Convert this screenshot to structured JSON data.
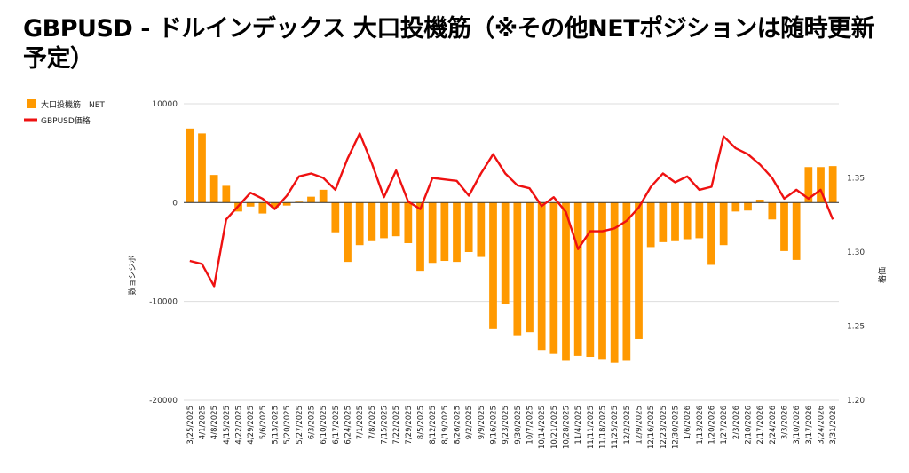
{
  "chart_data": {
    "type": "bar+line",
    "title": "GBPUSD - ドルインデックス 大口投機筋（※その他NETポジションは随時更新予定）",
    "ylabel_left": "数ョシジボ",
    "ylabel_right": "格価",
    "ylim_left": [
      -20000,
      10000
    ],
    "yticks_left": [
      "10000",
      "0",
      "-10000",
      "-20000"
    ],
    "ylim_right": [
      1.2,
      1.4
    ],
    "yticks_right": [
      "1.35",
      "1.30",
      "1.25",
      "1.20"
    ],
    "legend_position": "left",
    "categories": [
      "3/25/2025",
      "4/1/2025",
      "4/8/2025",
      "4/15/2025",
      "4/22/2025",
      "4/29/2025",
      "5/6/2025",
      "5/13/2025",
      "5/20/2025",
      "5/27/2025",
      "6/3/2025",
      "6/10/2025",
      "6/17/2025",
      "6/24/2025",
      "7/1/2025",
      "7/8/2025",
      "7/15/2025",
      "7/22/2025",
      "7/29/2025",
      "8/5/2025",
      "8/12/2025",
      "8/19/2025",
      "8/26/2025",
      "9/2/2025",
      "9/9/2025",
      "9/16/2025",
      "9/23/2025",
      "9/30/2025",
      "10/7/2025",
      "10/14/2025",
      "10/21/2025",
      "10/28/2025",
      "11/4/2025",
      "11/11/2025",
      "11/18/2025",
      "11/25/2025",
      "12/2/2025",
      "12/9/2025",
      "12/16/2025",
      "12/23/2025",
      "12/30/2025",
      "1/6/2026",
      "1/13/2026",
      "1/20/2026",
      "1/27/2026",
      "2/3/2026",
      "2/10/2026",
      "2/17/2026",
      "2/24/2026",
      "3/3/2026",
      "3/10/2026",
      "3/17/2026",
      "3/24/2026",
      "3/31/2026"
    ],
    "series": [
      {
        "name": "大口投機筋　NET",
        "type": "bar",
        "axis": "left",
        "color": "#ff9900",
        "values": [
          7500,
          7000,
          2800,
          1700,
          -900,
          -400,
          -1100,
          -500,
          -300,
          100,
          600,
          1300,
          -3000,
          -6000,
          -4300,
          -3900,
          -3600,
          -3400,
          -4100,
          -6900,
          -6100,
          -5900,
          -6000,
          -5000,
          -5500,
          -12800,
          -10300,
          -13500,
          -13100,
          -14900,
          -15300,
          -16000,
          -15500,
          -15600,
          -15900,
          -16200,
          -16000,
          -13800,
          -4500,
          -4000,
          -3900,
          -3700,
          -3600,
          -6300,
          -4300,
          -900,
          -800,
          300,
          -1700,
          -4900,
          -5800,
          3600,
          3600,
          3700
        ]
      },
      {
        "name": "GBPUSD価格",
        "type": "line",
        "axis": "right",
        "color": "#ee1111",
        "values": [
          1.294,
          1.292,
          1.277,
          1.322,
          1.331,
          1.34,
          1.336,
          1.329,
          1.338,
          1.351,
          1.353,
          1.35,
          1.342,
          1.363,
          1.38,
          1.36,
          1.337,
          1.355,
          1.334,
          1.329,
          1.35,
          1.349,
          1.348,
          1.338,
          1.353,
          1.366,
          1.353,
          1.345,
          1.343,
          1.331,
          1.337,
          1.327,
          1.302,
          1.314,
          1.314,
          1.316,
          1.321,
          1.33,
          1.344,
          1.353,
          1.347,
          1.351,
          1.342,
          1.344,
          1.378,
          1.37,
          1.366,
          1.359,
          1.35,
          1.336,
          1.342,
          1.336,
          1.342,
          1.322
        ]
      }
    ]
  }
}
